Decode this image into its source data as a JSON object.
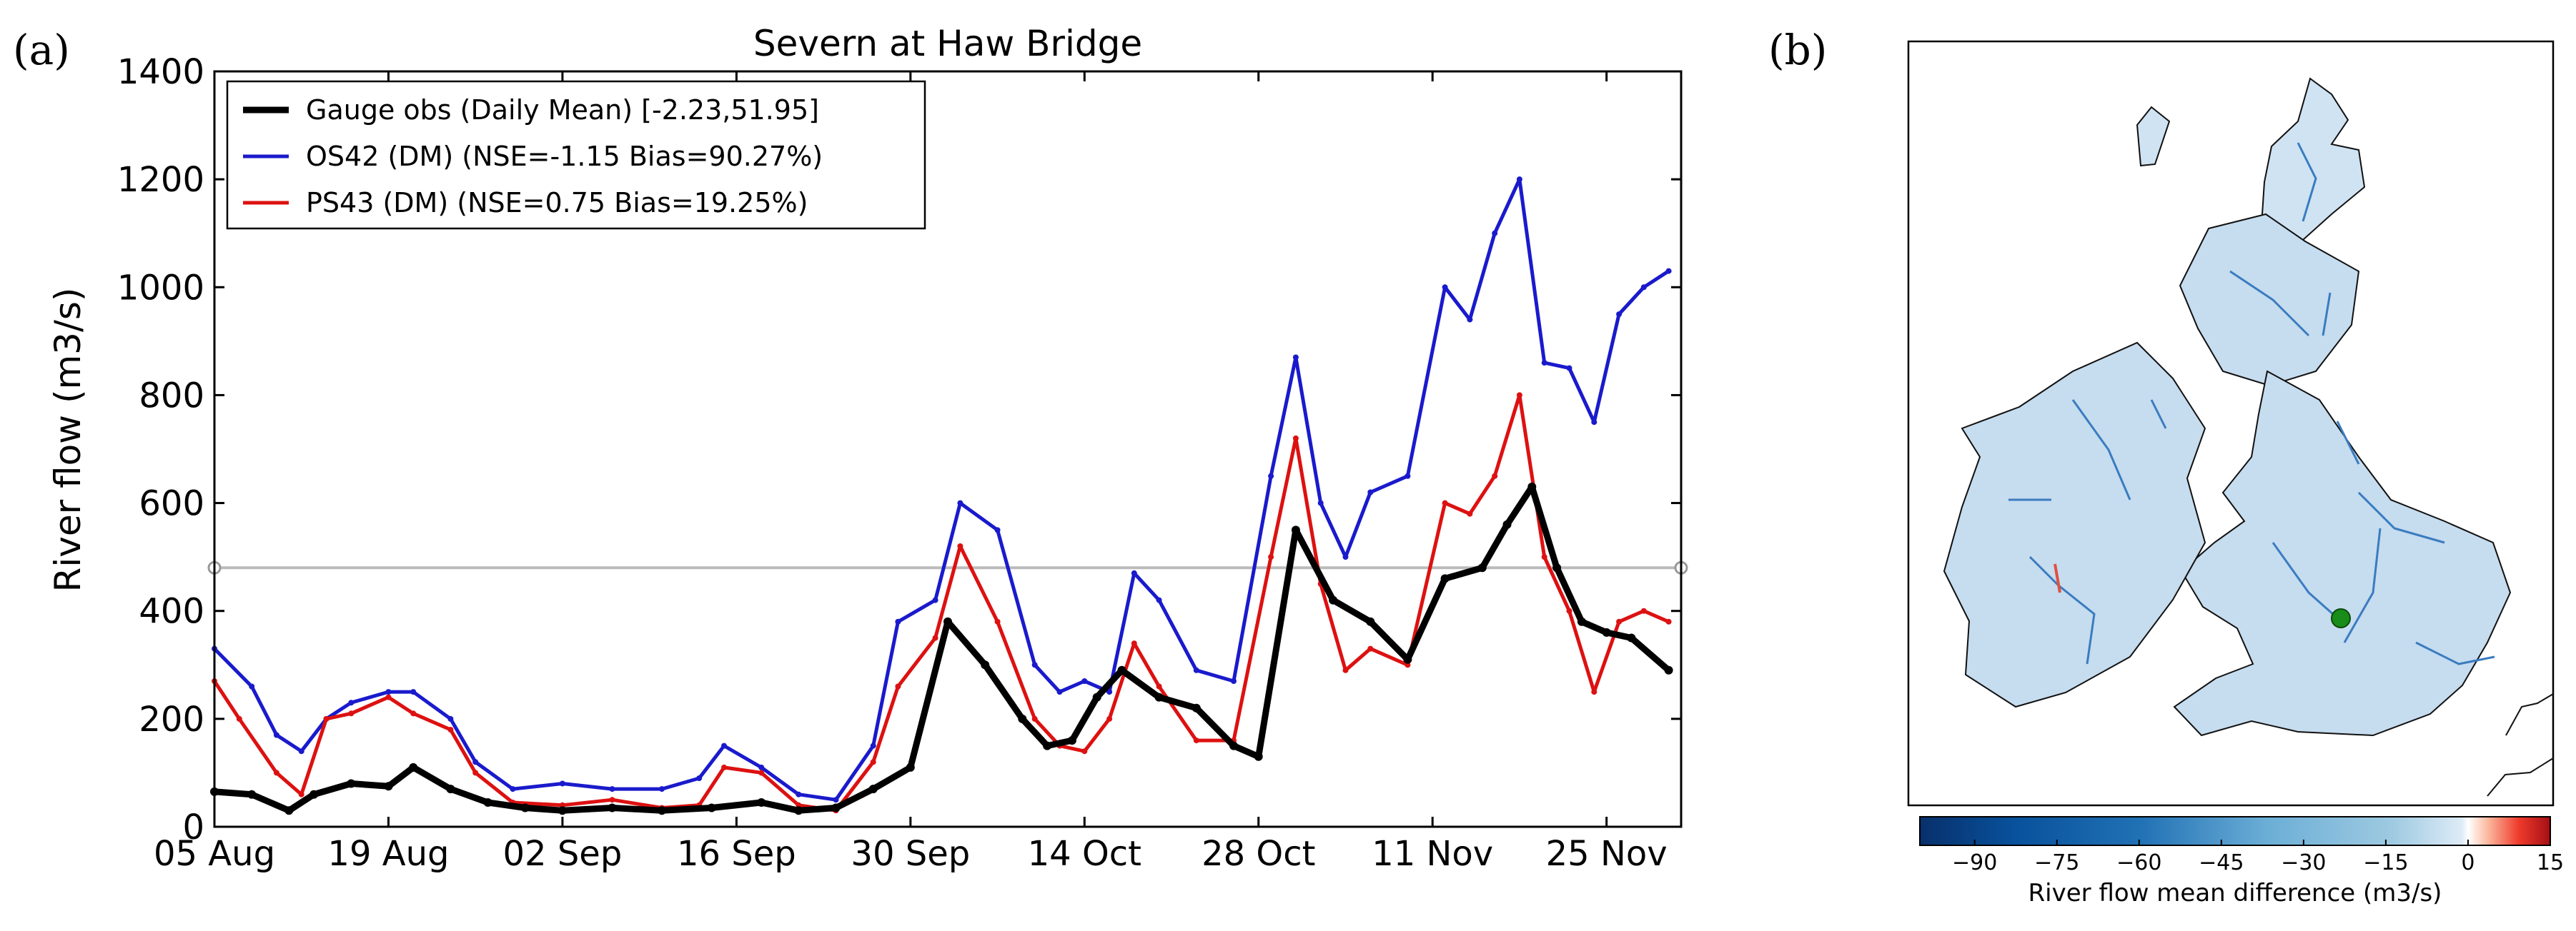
{
  "panel_labels": {
    "a": "(a)",
    "b": "(b)"
  },
  "colors": {
    "gauge": "#000000",
    "os42": "#1a1acc",
    "ps43": "#dd1111",
    "ref_line": "#bbbbbb",
    "map_dot": "#1a8c1a"
  },
  "chart_data": [
    {
      "type": "line",
      "title": "Severn at Haw Bridge",
      "xlabel": "",
      "ylabel": "River flow (m3/s)",
      "ylim": [
        0,
        1400
      ],
      "yticks": [
        "0",
        "200",
        "400",
        "600",
        "800",
        "1000",
        "1200",
        "1400"
      ],
      "xlim": [
        "2015-08-05",
        "2015-12-01"
      ],
      "xticks": [
        "05 Aug",
        "19 Aug",
        "02 Sep",
        "16 Sep",
        "30 Sep",
        "14 Oct",
        "28 Oct",
        "11 Nov",
        "25 Nov"
      ],
      "grid": false,
      "legend_position": "top-left",
      "reference_line": 480,
      "series": [
        {
          "name": "Gauge obs (Daily Mean) [-2.23,51.95]",
          "color": "#000000",
          "x": [
            "2015-08-05",
            "2015-08-08",
            "2015-08-11",
            "2015-08-13",
            "2015-08-16",
            "2015-08-19",
            "2015-08-21",
            "2015-08-24",
            "2015-08-27",
            "2015-08-30",
            "2015-09-02",
            "2015-09-06",
            "2015-09-10",
            "2015-09-14",
            "2015-09-18",
            "2015-09-21",
            "2015-09-24",
            "2015-09-27",
            "2015-09-30",
            "2015-10-03",
            "2015-10-06",
            "2015-10-09",
            "2015-10-11",
            "2015-10-13",
            "2015-10-15",
            "2015-10-17",
            "2015-10-20",
            "2015-10-23",
            "2015-10-26",
            "2015-10-28",
            "2015-10-31",
            "2015-11-03",
            "2015-11-06",
            "2015-11-09",
            "2015-11-12",
            "2015-11-15",
            "2015-11-17",
            "2015-11-19",
            "2015-11-21",
            "2015-11-23",
            "2015-11-25",
            "2015-11-27",
            "2015-11-30"
          ],
          "values": [
            65,
            60,
            30,
            60,
            80,
            75,
            110,
            70,
            45,
            35,
            30,
            35,
            30,
            35,
            45,
            30,
            35,
            70,
            110,
            380,
            300,
            200,
            150,
            160,
            240,
            290,
            240,
            220,
            150,
            130,
            550,
            420,
            380,
            310,
            460,
            480,
            560,
            630,
            480,
            380,
            360,
            350,
            290
          ]
        },
        {
          "name": "OS42 (DM)  (NSE=-1.15 Bias=90.27%)",
          "color": "#1a1acc",
          "x": [
            "2015-08-05",
            "2015-08-08",
            "2015-08-10",
            "2015-08-12",
            "2015-08-14",
            "2015-08-16",
            "2015-08-19",
            "2015-08-21",
            "2015-08-24",
            "2015-08-26",
            "2015-08-29",
            "2015-09-02",
            "2015-09-06",
            "2015-09-10",
            "2015-09-13",
            "2015-09-15",
            "2015-09-18",
            "2015-09-21",
            "2015-09-24",
            "2015-09-27",
            "2015-09-29",
            "2015-10-02",
            "2015-10-04",
            "2015-10-07",
            "2015-10-10",
            "2015-10-12",
            "2015-10-14",
            "2015-10-16",
            "2015-10-18",
            "2015-10-20",
            "2015-10-23",
            "2015-10-26",
            "2015-10-29",
            "2015-10-31",
            "2015-11-02",
            "2015-11-04",
            "2015-11-06",
            "2015-11-09",
            "2015-11-12",
            "2015-11-14",
            "2015-11-16",
            "2015-11-18",
            "2015-11-20",
            "2015-11-22",
            "2015-11-24",
            "2015-11-26",
            "2015-11-28",
            "2015-11-30"
          ],
          "values": [
            330,
            260,
            170,
            140,
            200,
            230,
            250,
            250,
            200,
            120,
            70,
            80,
            70,
            70,
            90,
            150,
            110,
            60,
            50,
            150,
            380,
            420,
            600,
            550,
            300,
            250,
            270,
            250,
            470,
            420,
            290,
            270,
            650,
            870,
            600,
            500,
            620,
            650,
            1000,
            940,
            1100,
            1200,
            860,
            850,
            750,
            950,
            1000,
            1030
          ]
        },
        {
          "name": "PS43 (DM)  (NSE=0.75 Bias=19.25%)",
          "color": "#dd1111",
          "x": [
            "2015-08-05",
            "2015-08-07",
            "2015-08-10",
            "2015-08-12",
            "2015-08-14",
            "2015-08-16",
            "2015-08-19",
            "2015-08-21",
            "2015-08-24",
            "2015-08-26",
            "2015-08-29",
            "2015-09-02",
            "2015-09-06",
            "2015-09-10",
            "2015-09-13",
            "2015-09-15",
            "2015-09-18",
            "2015-09-21",
            "2015-09-24",
            "2015-09-27",
            "2015-09-29",
            "2015-10-02",
            "2015-10-04",
            "2015-10-07",
            "2015-10-10",
            "2015-10-12",
            "2015-10-14",
            "2015-10-16",
            "2015-10-18",
            "2015-10-20",
            "2015-10-23",
            "2015-10-26",
            "2015-10-29",
            "2015-10-31",
            "2015-11-02",
            "2015-11-04",
            "2015-11-06",
            "2015-11-09",
            "2015-11-12",
            "2015-11-14",
            "2015-11-16",
            "2015-11-18",
            "2015-11-20",
            "2015-11-22",
            "2015-11-24",
            "2015-11-26",
            "2015-11-28",
            "2015-11-30"
          ],
          "values": [
            270,
            200,
            100,
            60,
            200,
            210,
            240,
            210,
            180,
            100,
            45,
            40,
            50,
            35,
            40,
            110,
            100,
            40,
            30,
            120,
            260,
            350,
            520,
            380,
            200,
            150,
            140,
            200,
            340,
            260,
            160,
            160,
            500,
            720,
            450,
            290,
            330,
            300,
            600,
            580,
            650,
            800,
            500,
            400,
            250,
            380,
            400,
            380
          ]
        }
      ]
    },
    {
      "type": "heatmap",
      "title": "",
      "colorbar_label": "River flow mean difference (m3/s)",
      "colorbar_range": [
        -100,
        15
      ],
      "colorbar_ticks": [
        "−90",
        "−75",
        "−60",
        "−45",
        "−30",
        "−15",
        "0",
        "15"
      ],
      "marker_color": "#1a8c1a"
    }
  ]
}
